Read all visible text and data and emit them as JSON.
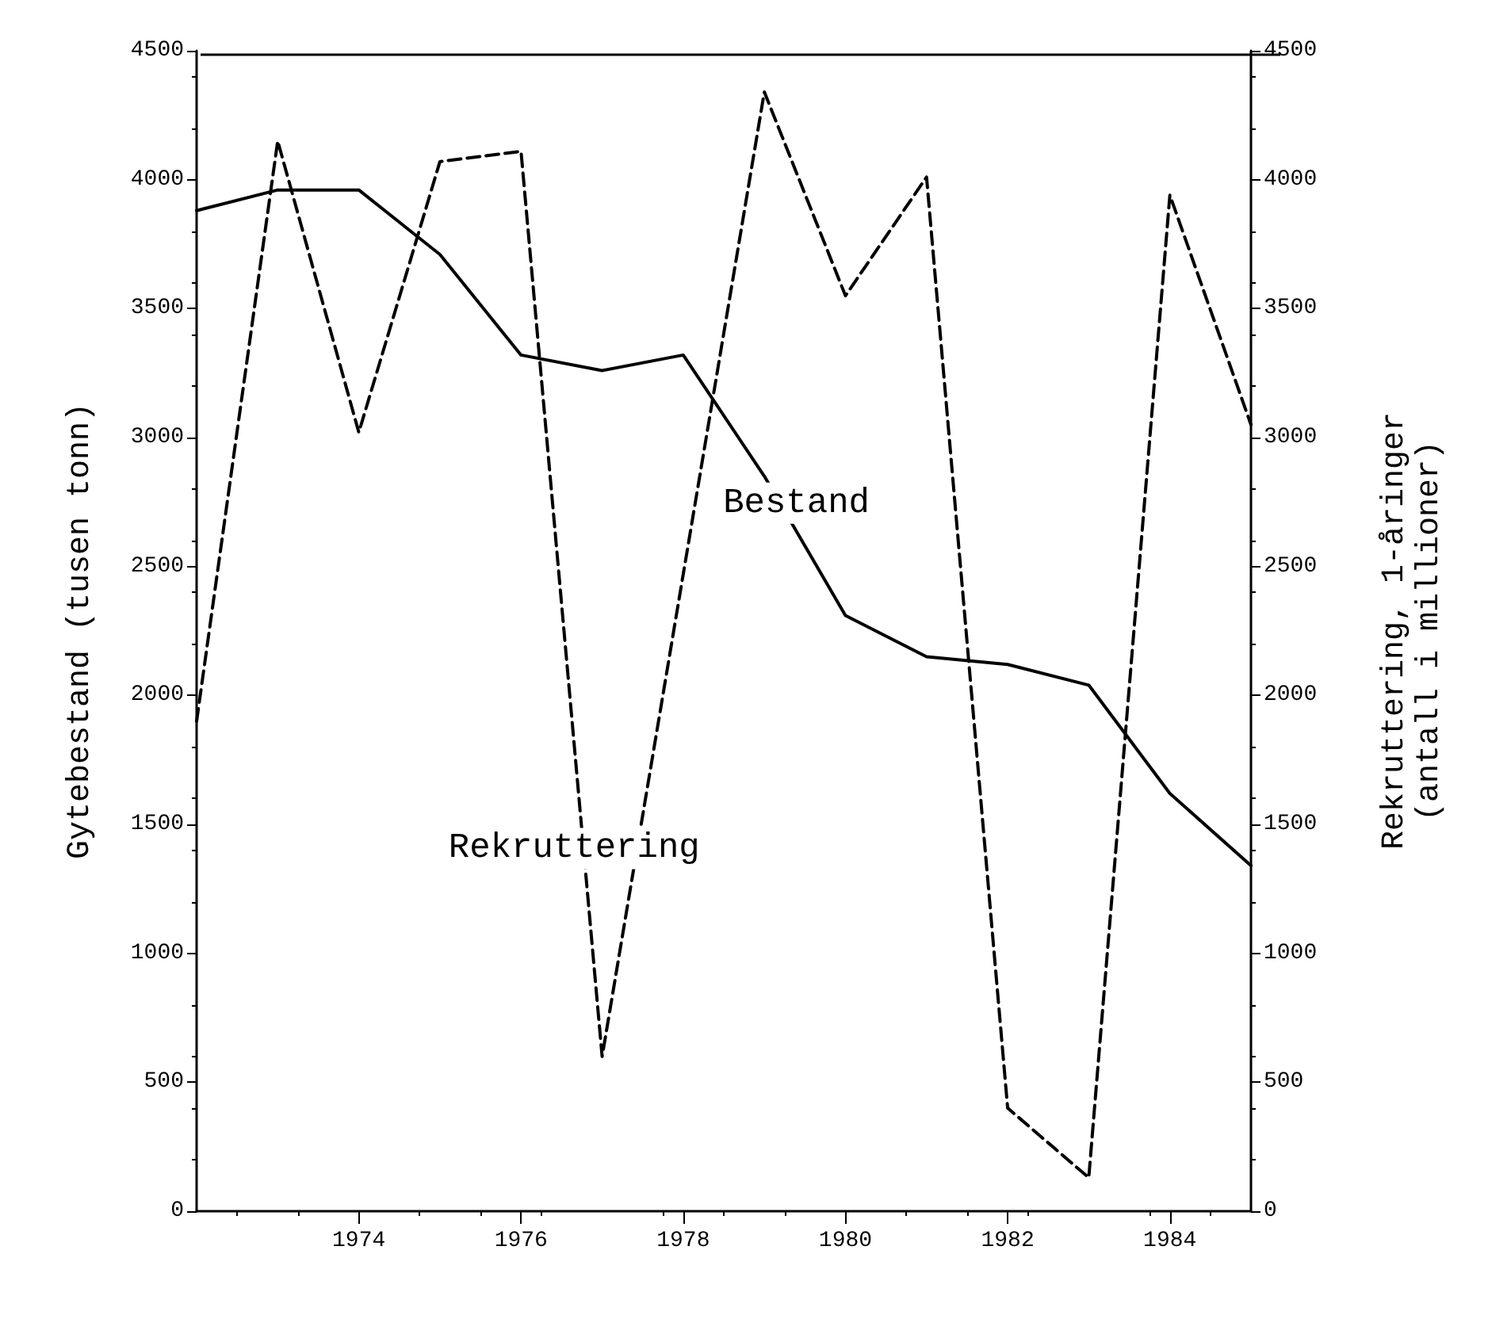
{
  "chart_data": {
    "type": "line",
    "ylabel": "Gytebestand (tusen tonn)",
    "y2label": "Rekruttering, 1-åringer\n(antall i millioner)",
    "x": [
      1972,
      1973,
      1974,
      1975,
      1976,
      1977,
      1978,
      1979,
      1980,
      1981,
      1982,
      1983,
      1984,
      1985
    ],
    "series": [
      {
        "name": "Bestand",
        "color": "#000000",
        "line_style": "solid",
        "values": [
          3880,
          3960,
          3960,
          3710,
          3320,
          3260,
          3320,
          2850,
          2310,
          2150,
          2120,
          2040,
          1620,
          1340
        ]
      },
      {
        "name": "Rekruttering",
        "color": "#000000",
        "line_style": "dashed",
        "axis": "y2",
        "values": [
          1900,
          4150,
          3020,
          4070,
          4110,
          600,
          2470,
          4340,
          3550,
          4010,
          400,
          130,
          3940,
          3050
        ]
      }
    ],
    "xlim": [
      1972,
      1985
    ],
    "xticks": [
      1974,
      1976,
      1978,
      1980,
      1982,
      1984
    ],
    "ylim": [
      0,
      4500
    ],
    "yticks": [
      0,
      500,
      1000,
      1500,
      2000,
      2500,
      3000,
      3500,
      4000,
      4500
    ],
    "y2lim": [
      0,
      4500
    ],
    "y2ticks": [
      0,
      500,
      1000,
      1500,
      2000,
      2500,
      3000,
      3500,
      4000,
      4500
    ],
    "grid": false,
    "legend": false,
    "marker": "none"
  }
}
